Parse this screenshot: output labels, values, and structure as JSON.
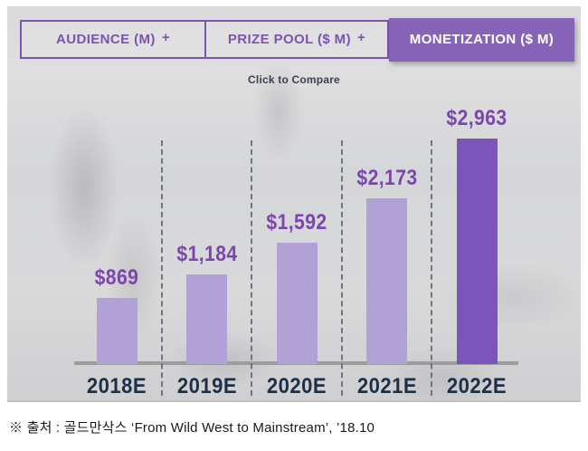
{
  "tabs": [
    {
      "label": "AUDIENCE (M)",
      "plus": "+",
      "selected": false
    },
    {
      "label": "PRIZE POOL ($ M)",
      "plus": "+",
      "selected": false
    },
    {
      "label": "MONETIZATION ($ M)",
      "plus": "",
      "selected": true
    }
  ],
  "hint": "Click to Compare",
  "chart_data": {
    "type": "bar",
    "title": "MONETIZATION ($ M)",
    "categories": [
      "2018E",
      "2019E",
      "2020E",
      "2021E",
      "2022E"
    ],
    "values": [
      869,
      1184,
      1592,
      2173,
      2963
    ],
    "value_labels": [
      "$869",
      "$1,184",
      "$1,592",
      "$2,173",
      "$2,963"
    ],
    "ylim": [
      0,
      3000
    ],
    "highlight_index": 4,
    "legend": "none",
    "grid": "dashed-vertical-separators",
    "colors": {
      "bar": "#b2a1d6",
      "bar_highlight": "#7d54bb",
      "value_label": "#7c46ad",
      "axis_label": "#1c3148",
      "separator": "#5a6773",
      "axis_line": "#9c9c9c",
      "tab_accent": "#7b53b0",
      "tab_selected_bg": "#8763b8"
    }
  },
  "footer": {
    "source": "※ 출처 : 골드만삭스 ‘From Wild West to Mainstream’, ’18.10"
  }
}
